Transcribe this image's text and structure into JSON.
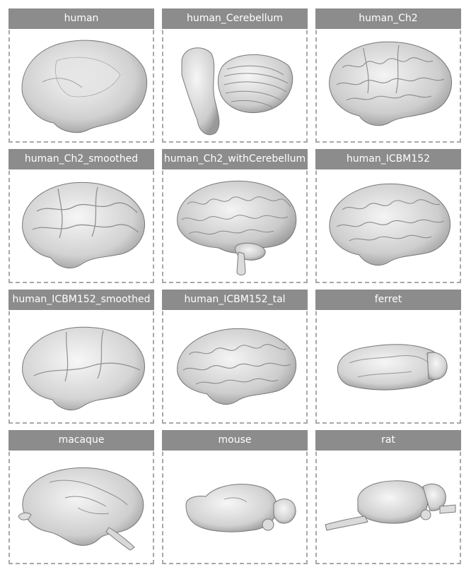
{
  "panels": [
    {
      "label": "human"
    },
    {
      "label": "human_Cerebellum"
    },
    {
      "label": "human_Ch2"
    },
    {
      "label": "human_Ch2_smoothed"
    },
    {
      "label": "human_Ch2_withCerebellum"
    },
    {
      "label": "human_ICBM152"
    },
    {
      "label": "human_ICBM152_smoothed"
    },
    {
      "label": "human_ICBM152_tal"
    },
    {
      "label": "ferret"
    },
    {
      "label": "macaque"
    },
    {
      "label": "mouse"
    },
    {
      "label": "rat"
    }
  ]
}
